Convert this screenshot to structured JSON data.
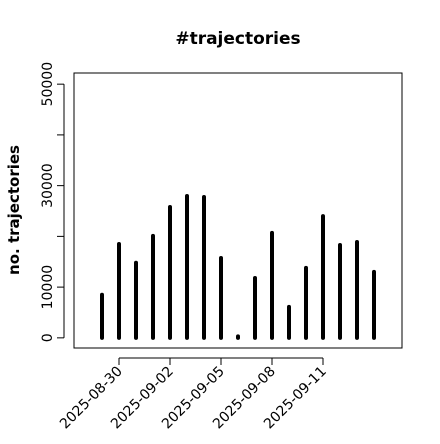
{
  "chart_data": {
    "type": "bar",
    "title": "#trajectories",
    "y_label": "no. trajectories",
    "categories": [
      "2025-08-29",
      "2025-08-30",
      "2025-08-31",
      "2025-09-01",
      "2025-09-02",
      "2025-09-03",
      "2025-09-04",
      "2025-09-05",
      "2025-09-06",
      "2025-09-07",
      "2025-09-08",
      "2025-09-09",
      "2025-09-10",
      "2025-09-11",
      "2025-09-12",
      "2025-09-13",
      "2025-09-14"
    ],
    "values": [
      8500,
      18500,
      14800,
      20100,
      25800,
      27950,
      27750,
      15750,
      300,
      11800,
      20700,
      6100,
      13800,
      24000,
      18300,
      18900,
      13000
    ],
    "color": "#000000",
    "xticks": [
      "2025-08-30",
      "2025-09-02",
      "2025-09-05",
      "2025-09-08",
      "2025-09-11"
    ],
    "ylim": [
      -2000,
      52200
    ],
    "yticks": [
      0,
      10000,
      30000,
      50000
    ],
    "yticks_minor": [
      20000,
      40000
    ]
  }
}
